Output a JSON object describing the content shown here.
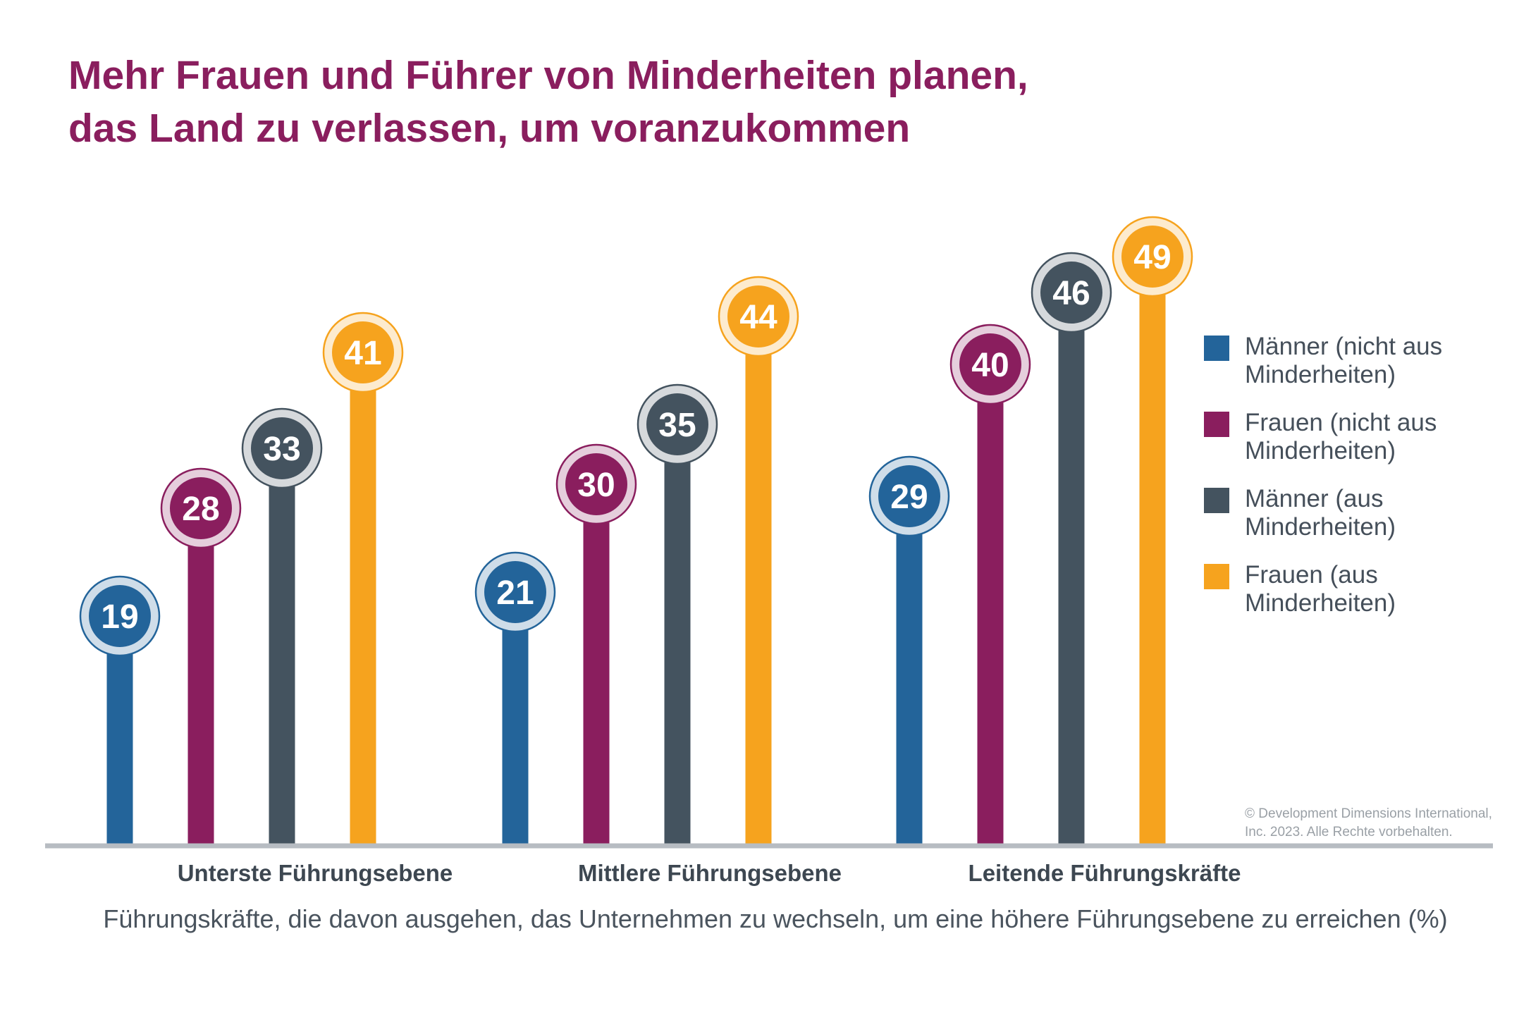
{
  "title": {
    "line1": "Mehr Frauen und Führer von Minderheiten planen,",
    "line2": "das Land zu verlassen, um voranzukommen"
  },
  "chart_data": {
    "type": "bar",
    "categories": [
      "Unterste Führungsebene",
      "Mittlere Führungsebene",
      "Leitende Führungskräfte"
    ],
    "series": [
      {
        "name": "Männer (nicht aus Minderheiten)",
        "color": "#23649a",
        "values": [
          19,
          21,
          29
        ]
      },
      {
        "name": "Frauen (nicht aus Minderheiten)",
        "color": "#8a1e5e",
        "values": [
          28,
          30,
          40
        ]
      },
      {
        "name": "Männer (aus Minderheiten)",
        "color": "#44535f",
        "values": [
          33,
          35,
          46
        ]
      },
      {
        "name": "Frauen (aus Minderheiten)",
        "color": "#f6a31e",
        "values": [
          41,
          44,
          49
        ]
      }
    ],
    "xlabel": "Führungskräfte, die davon ausgehen, das Unternehmen zu wechseln, um eine höhere Führungsebene zu erreichen (%)",
    "ylabel": "",
    "ylim": [
      0,
      49
    ],
    "grid": false,
    "legend_position": "right"
  },
  "legend": [
    {
      "label": "Männer (nicht aus Minderheiten)",
      "color": "#23649a"
    },
    {
      "label": "Frauen (nicht aus Minderheiten)",
      "color": "#8a1e5e"
    },
    {
      "label": "Männer (aus Minderheiten)",
      "color": "#44535f"
    },
    {
      "label": "Frauen (aus Minderheiten)",
      "color": "#f6a31e"
    }
  ],
  "copyright": "© Development Dimensions International, Inc. 2023. Alle Rechte vorbehalten.",
  "colors": {
    "title": "#8a1e5e",
    "axis": "#b7bcc2"
  }
}
